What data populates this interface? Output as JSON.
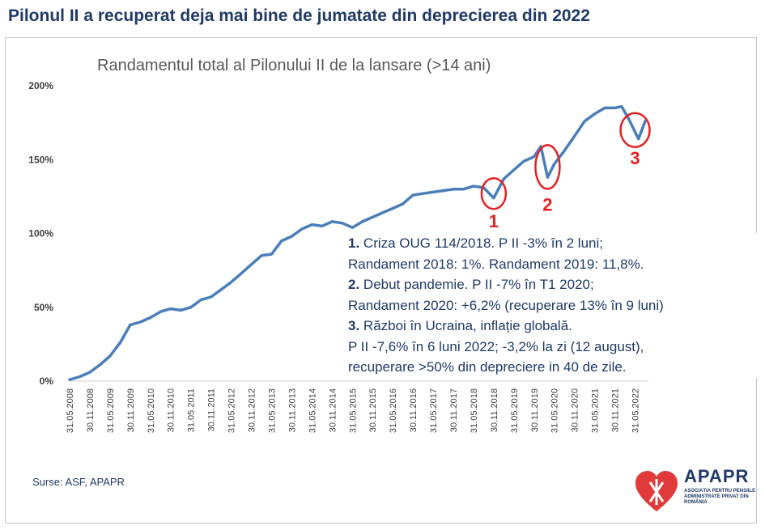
{
  "headline": "Pilonul II a recuperat deja mai bine de jumatate din deprecierea din 2022",
  "chart_data": {
    "type": "line",
    "title": "Randamentul total al Pilonului II de la lansare (>14 ani)",
    "xlabel": "",
    "ylabel": "",
    "ylim": [
      0,
      200
    ],
    "yticks": [
      0,
      50,
      100,
      150,
      200
    ],
    "ytick_labels": [
      "0%",
      "50%",
      "100%",
      "150%",
      "200%"
    ],
    "grid": false,
    "x_tick_labels": [
      "31.05.2008",
      "30.11.2008",
      "31.05.2009",
      "30.11.2009",
      "31.05.2010",
      "30.11.2010",
      "31.05.2011",
      "30.11.2011",
      "31.05.2012",
      "30.11.2012",
      "31.05.2013",
      "30.11.2013",
      "31.05.2014",
      "30.11.2014",
      "31.05.2015",
      "30.11.2015",
      "31.05.2016",
      "30.11.2016",
      "31.05.2017",
      "30.11.2017",
      "31.05.2018",
      "30.11.2018",
      "31.05.2019",
      "30.11.2019",
      "31.05.2020",
      "30.11.2020",
      "31.05.2021",
      "30.11.2021",
      "31.05.2022"
    ],
    "series": [
      {
        "color": "#4a7ebb",
        "x": [
          "2008-05",
          "2008-08",
          "2008-11",
          "2009-02",
          "2009-05",
          "2009-08",
          "2009-11",
          "2010-02",
          "2010-05",
          "2010-08",
          "2010-11",
          "2011-02",
          "2011-05",
          "2011-08",
          "2011-11",
          "2012-02",
          "2012-05",
          "2012-08",
          "2012-11",
          "2013-02",
          "2013-05",
          "2013-08",
          "2013-11",
          "2014-02",
          "2014-05",
          "2014-08",
          "2014-11",
          "2015-02",
          "2015-05",
          "2015-08",
          "2015-11",
          "2016-02",
          "2016-05",
          "2016-08",
          "2016-11",
          "2017-02",
          "2017-05",
          "2017-08",
          "2017-11",
          "2018-02",
          "2018-05",
          "2018-08",
          "2018-11",
          "2019-02",
          "2019-05",
          "2019-08",
          "2019-11",
          "2020-01",
          "2020-03",
          "2020-05",
          "2020-08",
          "2020-11",
          "2021-02",
          "2021-05",
          "2021-08",
          "2021-11",
          "2022-01",
          "2022-03",
          "2022-06",
          "2022-08"
        ],
        "values": [
          1,
          3,
          6,
          11,
          17,
          26,
          38,
          40,
          43,
          47,
          49,
          48,
          50,
          55,
          57,
          62,
          67,
          73,
          79,
          85,
          86,
          95,
          98,
          103,
          106,
          105,
          108,
          107,
          104,
          108,
          111,
          114,
          117,
          120,
          126,
          127,
          128,
          129,
          130,
          130,
          132,
          131,
          124,
          137,
          143,
          149,
          152,
          159,
          138,
          147,
          156,
          166,
          176,
          181,
          185,
          185,
          186,
          178,
          164,
          176
        ]
      }
    ],
    "annotations": [
      "1",
      "2",
      "3"
    ]
  },
  "notes": [
    {
      "num": "1.",
      "text": " Criza OUG 114/2018. P II -3% în 2 luni;"
    },
    {
      "num": "",
      "text": "Randament 2018: 1%. Randament 2019: 11,8%."
    },
    {
      "num": "2.",
      "text": " Debut pandemie. P II -7% în T1 2020;"
    },
    {
      "num": "",
      "text": "Randament 2020: +6,2% (recuperare 13% în 9 luni)"
    },
    {
      "num": "3.",
      "text": " Război în Ucraina, inflație globală."
    },
    {
      "num": "",
      "text": "P II -7,6% în 6 luni 2022; -3,2% la zi (12 august),"
    },
    {
      "num": "",
      "text": "recuperare >50% din depreciere in 40 de zile."
    }
  ],
  "sources": "Surse: ASF, APAPR",
  "logo": {
    "name": "APAPR",
    "subtitle": "ASOCIAȚIA PENTRU PENSIILE ADMINISTRATE PRIVAT DIN ROMÂNIA",
    "heart_color": "#e03a3a",
    "text_color": "#1f3a68"
  }
}
